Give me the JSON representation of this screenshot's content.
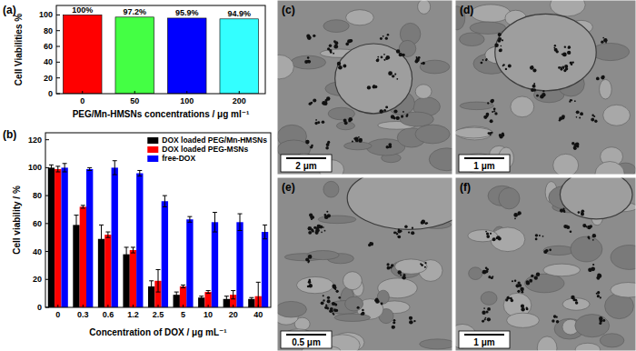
{
  "chart_data": [
    {
      "type": "bar",
      "title": "(a)",
      "y_label": "Cell Viabilities %",
      "x_label": "PEG/Mn-HMSNs concentrations / μg ml⁻¹",
      "categories": [
        "0",
        "50",
        "100",
        "200"
      ],
      "values": [
        100,
        97.2,
        95.9,
        94.9
      ],
      "value_labels": [
        "100%",
        "97.2%",
        "95.9%",
        "94.9%"
      ],
      "colors": [
        "#ff0000",
        "#44ff44",
        "#0000ff",
        "#33ffff"
      ],
      "data_labels": true,
      "ylim": [
        0,
        112
      ],
      "yticks": [
        0,
        20,
        40,
        60,
        80,
        100
      ],
      "grid": false
    },
    {
      "type": "bar",
      "title": "(b)",
      "y_label": "Cell viability / %",
      "x_label": "Concentration of DOX / μg mL⁻¹",
      "categories": [
        "0",
        "0.3",
        "0.6",
        "1.2",
        "2.5",
        "5",
        "10",
        "20",
        "40"
      ],
      "series": [
        {
          "name": "DOX loaded PEG/Mn-HMSNs",
          "color": "#000000",
          "values": [
            100,
            59,
            49,
            38,
            15,
            9,
            7,
            6,
            6
          ],
          "errors": [
            2,
            7,
            10,
            5,
            4,
            2,
            1,
            2,
            1
          ]
        },
        {
          "name": "DOX loaded PEG-MSNs",
          "color": "#ff0000",
          "values": [
            99,
            72,
            52,
            41,
            19,
            15,
            11,
            9,
            8
          ],
          "errors": [
            2,
            1,
            2,
            2,
            8,
            1,
            1,
            3,
            10
          ]
        },
        {
          "name": "free-DOX",
          "color": "#0000ff",
          "values": [
            100,
            99,
            100,
            96,
            76,
            63,
            61,
            61,
            54
          ],
          "errors": [
            3,
            1,
            5,
            2,
            4,
            2,
            7,
            6,
            5
          ]
        }
      ],
      "legend": "upper right",
      "ylim": [
        0,
        125
      ],
      "yticks": [
        0,
        20,
        40,
        60,
        80,
        100,
        120
      ],
      "grid": false
    }
  ],
  "micrographs": [
    {
      "label": "(c)",
      "scale_bar": "2 μm"
    },
    {
      "label": "(d)",
      "scale_bar": "1 μm"
    },
    {
      "label": "(e)",
      "scale_bar": "0.5 μm"
    },
    {
      "label": "(f)",
      "scale_bar": "1 μm"
    }
  ]
}
